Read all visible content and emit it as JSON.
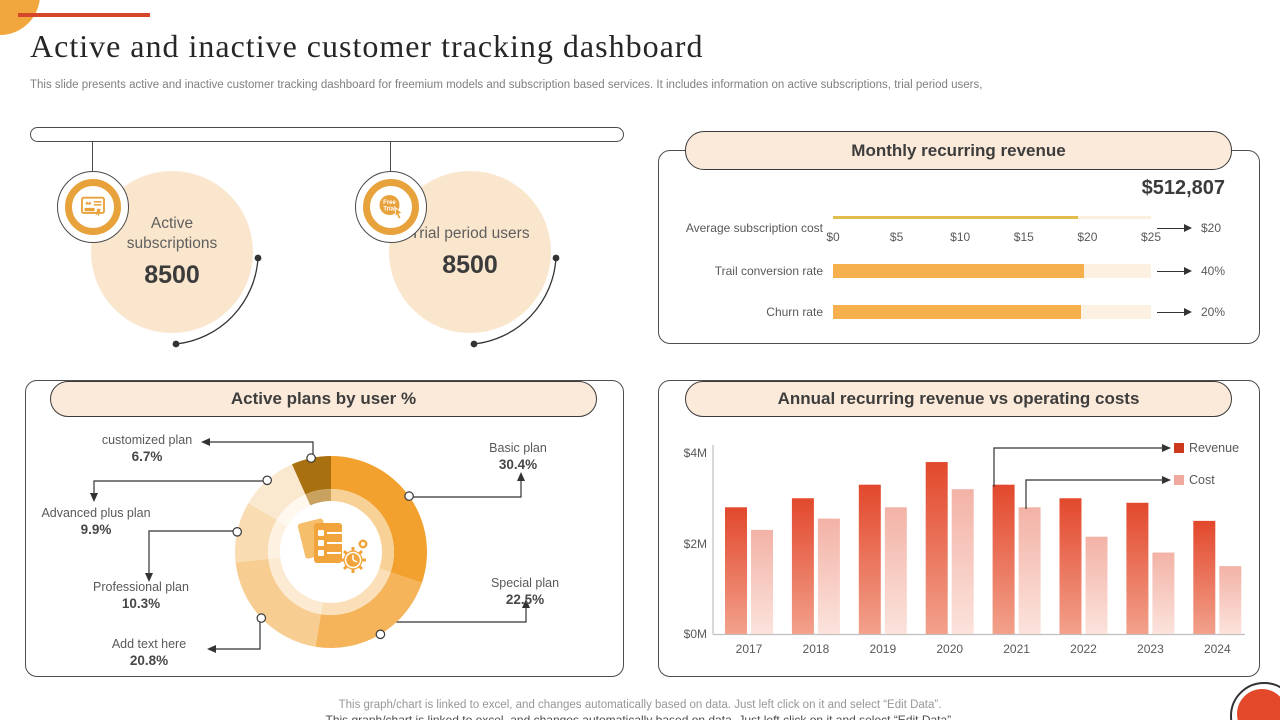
{
  "header": {
    "title": "Active and inactive customer tracking dashboard",
    "subtitle": "This slide presents active and inactive customer tracking dashboard for freemium models and subscription based services. It includes information on active subscriptions, trial period users,"
  },
  "stats": [
    {
      "label": "Active subscriptions",
      "value": "8500",
      "icon": "subscription-certificate-icon"
    },
    {
      "label": "Trial period users",
      "value": "8500",
      "icon": "free-trial-icon",
      "icon_label_1": "Free",
      "icon_label_2": "Trial"
    }
  ],
  "mrr": {
    "title": "Monthly recurring revenue",
    "total": "$512,807",
    "axis": [
      "$0",
      "$5",
      "$10",
      "$15",
      "$20",
      "$25"
    ],
    "rows": [
      {
        "label": "Average subscription cost",
        "value": "$20",
        "fill_pct": 77,
        "style": "line"
      },
      {
        "label": "Trail conversion rate",
        "value": "40%",
        "fill_pct": 79,
        "style": "bar"
      },
      {
        "label": "Churn rate",
        "value": "20%",
        "fill_pct": 78,
        "style": "bar"
      }
    ]
  },
  "donut": {
    "title": "Active plans by user %",
    "callouts": [
      {
        "name": "customized plan",
        "value": "6.7%"
      },
      {
        "name": "Basic plan",
        "value": "30.4%"
      },
      {
        "name": "Advanced  plus plan",
        "value": "9.9%"
      },
      {
        "name": "Professional plan",
        "value": "10.3%"
      },
      {
        "name": "Add text here",
        "value": "20.8%"
      },
      {
        "name": "Special plan",
        "value": "22.5%"
      }
    ]
  },
  "annual": {
    "title": "Annual recurring revenue vs operating costs",
    "y_ticks": [
      "$4M",
      "$2M",
      "$0M"
    ],
    "legend": [
      "Revenue",
      "Cost"
    ],
    "colors": {
      "revenue": "#CB3A1F",
      "cost": "#F0A99D"
    }
  },
  "footer": {
    "note": "This graph/chart is linked to excel,  and changes automatically based on data. Just left click on it and select “Edit Data”."
  },
  "chart_data": [
    {
      "type": "bar",
      "orientation": "horizontal",
      "title": "Monthly recurring revenue",
      "total_label": "$512,807",
      "categories": [
        "Average subscription cost",
        "Trail conversion rate",
        "Churn rate"
      ],
      "values": [
        20,
        40,
        20
      ],
      "value_labels": [
        "$20",
        "40%",
        "20%"
      ],
      "axis_ticks": [
        "$0",
        "$5",
        "$10",
        "$15",
        "$20",
        "$25"
      ],
      "xlim": [
        0,
        25
      ]
    },
    {
      "type": "pie",
      "title": "Active plans by user %",
      "slices": [
        {
          "label": "Basic plan",
          "value": 30.4,
          "color": "#F2A12E",
          "inner_color": "#F8D197"
        },
        {
          "label": "Special plan",
          "value": 22.5,
          "color": "#F5B45A",
          "inner_color": "#FADFB9"
        },
        {
          "label": "Add text here",
          "value": 20.8,
          "color": "#F7CD92",
          "inner_color": "#FCEAD2"
        },
        {
          "label": "Professional plan",
          "value": 10.3,
          "color": "#F9DCB2",
          "inner_color": "#FDF2E2"
        },
        {
          "label": "Advanced plus plan",
          "value": 9.9,
          "color": "#FBE9CF",
          "inner_color": "#FEF8EE"
        },
        {
          "label": "customized plan",
          "value": 6.7,
          "color": "#A8700F",
          "inner_color": "#C9A25F"
        }
      ]
    },
    {
      "type": "bar",
      "title": "Annual recurring revenue vs operating costs",
      "categories": [
        "2017",
        "2018",
        "2019",
        "2020",
        "2021",
        "2022",
        "2023",
        "2024"
      ],
      "series": [
        {
          "name": "Revenue",
          "values": [
            2.8,
            3.0,
            3.3,
            3.8,
            3.3,
            3.0,
            2.9,
            2.5
          ]
        },
        {
          "name": "Cost",
          "values": [
            2.3,
            2.55,
            2.8,
            3.2,
            2.8,
            2.15,
            1.8,
            1.5
          ]
        }
      ],
      "unit": "$M",
      "ylim": [
        0,
        4
      ],
      "legend_position": "top-right"
    }
  ]
}
